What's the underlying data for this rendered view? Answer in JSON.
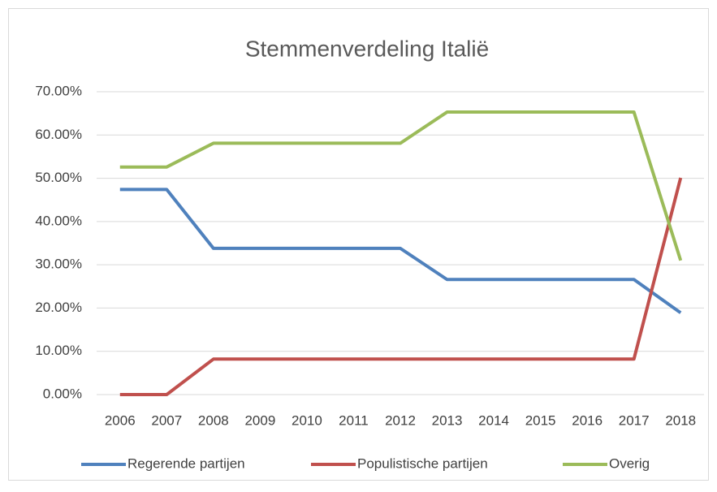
{
  "chart_data": {
    "type": "line",
    "title": "Stemmenverdeling Italië",
    "categories": [
      "2006",
      "2007",
      "2008",
      "2009",
      "2010",
      "2011",
      "2012",
      "2013",
      "2014",
      "2015",
      "2016",
      "2017",
      "2018"
    ],
    "series": [
      {
        "name": "Regerende partijen",
        "color": "#4f81bd",
        "values": [
          47.4,
          47.4,
          33.8,
          33.8,
          33.8,
          33.8,
          33.8,
          26.6,
          26.6,
          26.6,
          26.6,
          26.6,
          18.9
        ]
      },
      {
        "name": "Populistische partijen",
        "color": "#c0504d",
        "values": [
          0,
          0,
          8.2,
          8.2,
          8.2,
          8.2,
          8.2,
          8.2,
          8.2,
          8.2,
          8.2,
          8.2,
          50.1
        ]
      },
      {
        "name": "Overig",
        "color": "#9bbb59",
        "values": [
          52.6,
          52.6,
          58.1,
          58.1,
          58.1,
          58.1,
          58.1,
          65.3,
          65.3,
          65.3,
          65.3,
          65.3,
          31.0
        ]
      }
    ],
    "ylim": [
      0,
      70
    ],
    "yticks": [
      {
        "value": 0,
        "label": "0.00%"
      },
      {
        "value": 10,
        "label": "10.00%"
      },
      {
        "value": 20,
        "label": "20.00%"
      },
      {
        "value": 30,
        "label": "30.00%"
      },
      {
        "value": 40,
        "label": "40.00%"
      },
      {
        "value": 50,
        "label": "50.00%"
      },
      {
        "value": 60,
        "label": "60.00%"
      },
      {
        "value": 70,
        "label": "70.00%"
      }
    ],
    "grid": true,
    "legend": "bottom"
  }
}
